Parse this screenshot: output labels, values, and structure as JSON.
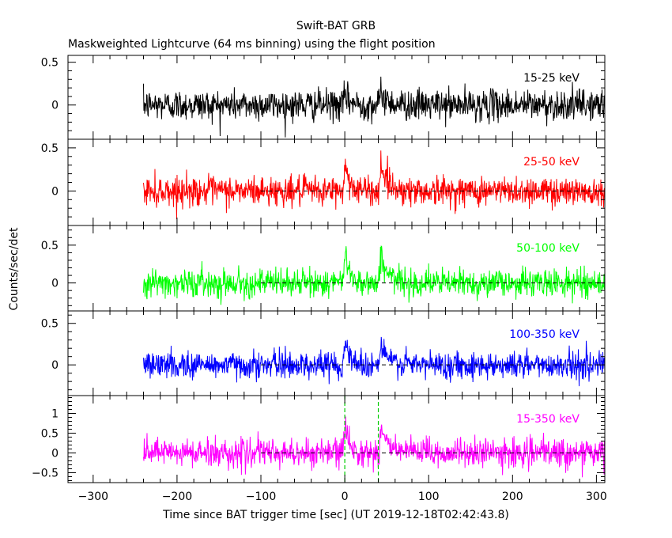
{
  "chart_data": {
    "type": "line",
    "title": "Swift-BAT GRB",
    "subtitle": "Maskweighted Lightcurve (64 ms binning) using the flight position",
    "xlabel": "Time since BAT trigger time [sec] (UT 2019-12-18T02:42:43.8)",
    "ylabel": "Counts/sec/det",
    "xlim": [
      -330,
      310
    ],
    "x_ticks": [
      -300,
      -200,
      -100,
      0,
      100,
      200,
      300
    ],
    "data_start": -240,
    "baseline_start": -100,
    "peak_times": [
      0,
      43
    ],
    "panels": [
      {
        "name": "15-25 keV",
        "color": "#000000",
        "ylim": [
          -0.4,
          0.58
        ],
        "y_ticks": [
          0,
          0.5
        ],
        "y_tick_labels": [
          "0",
          "0.5"
        ],
        "noise_sigma": 0.09,
        "peak_amplitudes": [
          0.12,
          0.15
        ],
        "zero_line": false
      },
      {
        "name": "25-50 keV",
        "color": "#ff0000",
        "ylim": [
          -0.4,
          0.6
        ],
        "y_ticks": [
          0,
          0.5
        ],
        "y_tick_labels": [
          "0",
          "0.5"
        ],
        "noise_sigma": 0.085,
        "peak_amplitudes": [
          0.3,
          0.32
        ],
        "zero_line": true
      },
      {
        "name": "50-100 keV",
        "color": "#00ff00",
        "ylim": [
          -0.37,
          0.76
        ],
        "y_ticks": [
          0,
          0.5
        ],
        "y_tick_labels": [
          "0",
          "0.5"
        ],
        "noise_sigma": 0.09,
        "peak_amplitudes": [
          0.42,
          0.38
        ],
        "zero_line": true
      },
      {
        "name": "100-350 keV",
        "color": "#0000ff",
        "ylim": [
          -0.37,
          0.65
        ],
        "y_ticks": [
          0,
          0.5
        ],
        "y_tick_labels": [
          "0",
          "0.5"
        ],
        "noise_sigma": 0.08,
        "peak_amplitudes": [
          0.3,
          0.25
        ],
        "zero_line": true
      },
      {
        "name": "15-350 keV",
        "color": "#ff00ff",
        "ylim": [
          -0.75,
          1.45
        ],
        "y_ticks": [
          -0.5,
          0,
          0.5,
          1
        ],
        "y_tick_labels": [
          "−0.5",
          "0",
          "0.5",
          "1"
        ],
        "noise_sigma": 0.18,
        "peak_amplitudes": [
          0.75,
          0.7
        ],
        "zero_line": true,
        "marker_lines": [
          0,
          40
        ],
        "marker_color": "#00cc00"
      }
    ]
  }
}
